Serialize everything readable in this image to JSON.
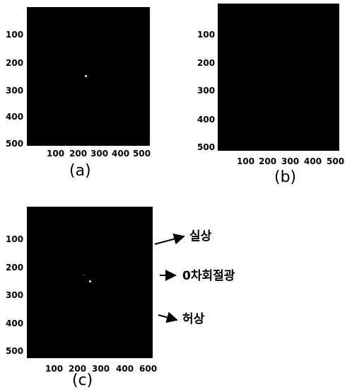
{
  "colors": {
    "background": "#ffffff",
    "panel": "#000000",
    "spot": "#ffffff"
  },
  "panels": [
    {
      "label": "(a)",
      "y_ticks": [
        "100",
        "200",
        "300",
        "400",
        "500"
      ],
      "x_ticks": [
        "100",
        "200",
        "300",
        "400",
        "500"
      ]
    },
    {
      "label": "(b)",
      "y_ticks": [
        "100",
        "200",
        "300",
        "400",
        "500"
      ],
      "x_ticks": [
        "100",
        "200",
        "300",
        "400",
        "500"
      ]
    },
    {
      "label": "(c)",
      "y_ticks": [
        "100",
        "200",
        "300",
        "400",
        "500"
      ],
      "x_ticks": [
        "100",
        "200",
        "300",
        "400",
        "600"
      ]
    }
  ],
  "annotations": [
    "실상",
    "0차회절광",
    "허상"
  ]
}
